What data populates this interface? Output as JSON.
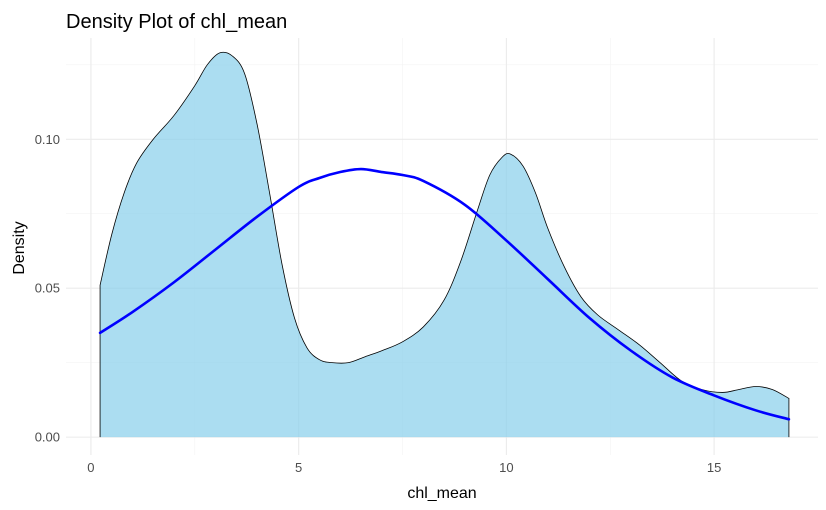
{
  "chart_data": {
    "type": "area",
    "title": "Density Plot of chl_mean",
    "xlabel": "chl_mean",
    "ylabel": "Density",
    "xlim": [
      -0.6,
      17.5
    ],
    "ylim": [
      -0.006,
      0.134
    ],
    "x_ticks": [
      {
        "value": 0,
        "label": "0"
      },
      {
        "value": 5,
        "label": "5"
      },
      {
        "value": 10,
        "label": "10"
      },
      {
        "value": 15,
        "label": "15"
      }
    ],
    "y_ticks": [
      {
        "value": 0.0,
        "label": "0.00"
      },
      {
        "value": 0.05,
        "label": "0.05"
      },
      {
        "value": 0.1,
        "label": "0.10"
      }
    ],
    "grid": true,
    "series": [
      {
        "kind": "area",
        "fill_color": "#87CEEB",
        "fill_opacity": 0.7,
        "stroke_color": "#000000",
        "points": [
          [
            0.22,
            0.051
          ],
          [
            0.5,
            0.068
          ],
          [
            0.8,
            0.082
          ],
          [
            1.1,
            0.092
          ],
          [
            1.5,
            0.1
          ],
          [
            2.0,
            0.108
          ],
          [
            2.5,
            0.118
          ],
          [
            2.8,
            0.125
          ],
          [
            3.1,
            0.129
          ],
          [
            3.4,
            0.128
          ],
          [
            3.7,
            0.122
          ],
          [
            4.0,
            0.105
          ],
          [
            4.3,
            0.082
          ],
          [
            4.6,
            0.058
          ],
          [
            4.9,
            0.04
          ],
          [
            5.2,
            0.03
          ],
          [
            5.5,
            0.026
          ],
          [
            5.8,
            0.025
          ],
          [
            6.2,
            0.025
          ],
          [
            6.6,
            0.027
          ],
          [
            7.0,
            0.029
          ],
          [
            7.5,
            0.032
          ],
          [
            8.0,
            0.037
          ],
          [
            8.5,
            0.046
          ],
          [
            8.9,
            0.059
          ],
          [
            9.3,
            0.076
          ],
          [
            9.6,
            0.088
          ],
          [
            9.9,
            0.094
          ],
          [
            10.1,
            0.095
          ],
          [
            10.4,
            0.091
          ],
          [
            10.7,
            0.082
          ],
          [
            11.0,
            0.07
          ],
          [
            11.4,
            0.057
          ],
          [
            11.8,
            0.047
          ],
          [
            12.2,
            0.041
          ],
          [
            12.7,
            0.036
          ],
          [
            13.2,
            0.031
          ],
          [
            13.7,
            0.025
          ],
          [
            14.2,
            0.019
          ],
          [
            14.7,
            0.016
          ],
          [
            15.2,
            0.015
          ],
          [
            15.6,
            0.016
          ],
          [
            16.0,
            0.017
          ],
          [
            16.4,
            0.016
          ],
          [
            16.8,
            0.013
          ]
        ]
      },
      {
        "kind": "line",
        "stroke_color": "#0000FF",
        "points": [
          [
            0.22,
            0.035
          ],
          [
            1.0,
            0.042
          ],
          [
            2.0,
            0.052
          ],
          [
            3.0,
            0.063
          ],
          [
            4.0,
            0.074
          ],
          [
            5.0,
            0.084
          ],
          [
            5.5,
            0.087
          ],
          [
            6.0,
            0.089
          ],
          [
            6.5,
            0.09
          ],
          [
            7.0,
            0.089
          ],
          [
            7.5,
            0.088
          ],
          [
            8.0,
            0.086
          ],
          [
            9.0,
            0.078
          ],
          [
            10.0,
            0.066
          ],
          [
            11.0,
            0.053
          ],
          [
            12.0,
            0.04
          ],
          [
            13.0,
            0.029
          ],
          [
            14.0,
            0.02
          ],
          [
            15.0,
            0.014
          ],
          [
            16.0,
            0.009
          ],
          [
            16.8,
            0.006
          ]
        ]
      }
    ]
  }
}
